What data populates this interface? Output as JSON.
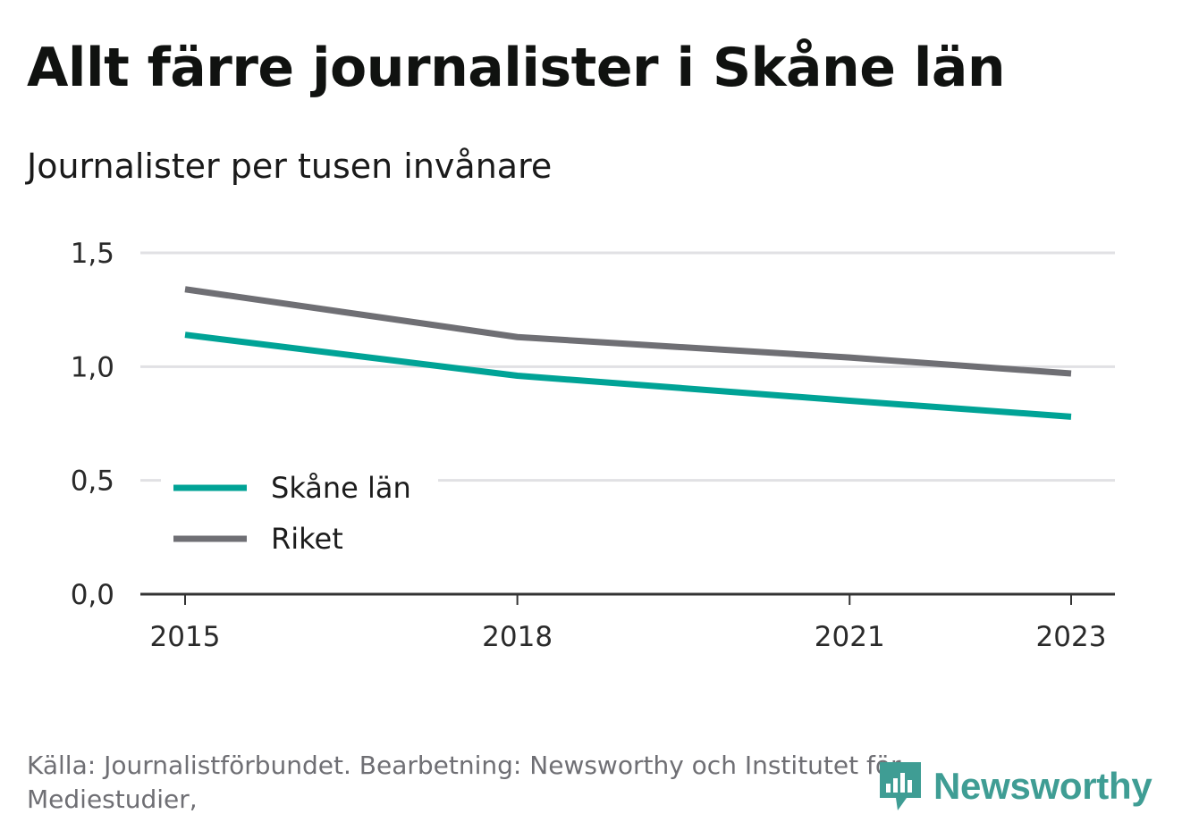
{
  "title": "Allt färre journalister i Skåne län",
  "subtitle": "Journalister per tusen invånare",
  "source": "Källa: Journalistförbundet. Bearbetning: Newsworthy och Institutet för Mediestudier,",
  "brand": {
    "name": "Newsworthy",
    "icon": "newsworthy-logo-icon",
    "color": "#3f9d94"
  },
  "chart_data": {
    "type": "line",
    "title": "Allt färre journalister i Skåne län",
    "ylabel": "Journalister per tusen invånare",
    "xlabel": "",
    "x": [
      2015,
      2018,
      2021,
      2023
    ],
    "xlim": [
      2015,
      2023
    ],
    "ylim": [
      0,
      1.5
    ],
    "x_ticks": [
      "2015",
      "2018",
      "2021",
      "2023"
    ],
    "y_ticks": [
      {
        "value": 0,
        "label": "0,0"
      },
      {
        "value": 0.5,
        "label": "0,5"
      },
      {
        "value": 1,
        "label": "1,0"
      },
      {
        "value": 1.5,
        "label": "1,5"
      }
    ],
    "grid": true,
    "legend_position": "bottom-left",
    "series": [
      {
        "name": "Skåne län",
        "color": "#00a396",
        "values": [
          1.14,
          0.96,
          0.85,
          0.78
        ]
      },
      {
        "name": "Riket",
        "color": "#6f6f74",
        "values": [
          1.34,
          1.13,
          1.04,
          0.97
        ]
      }
    ]
  }
}
